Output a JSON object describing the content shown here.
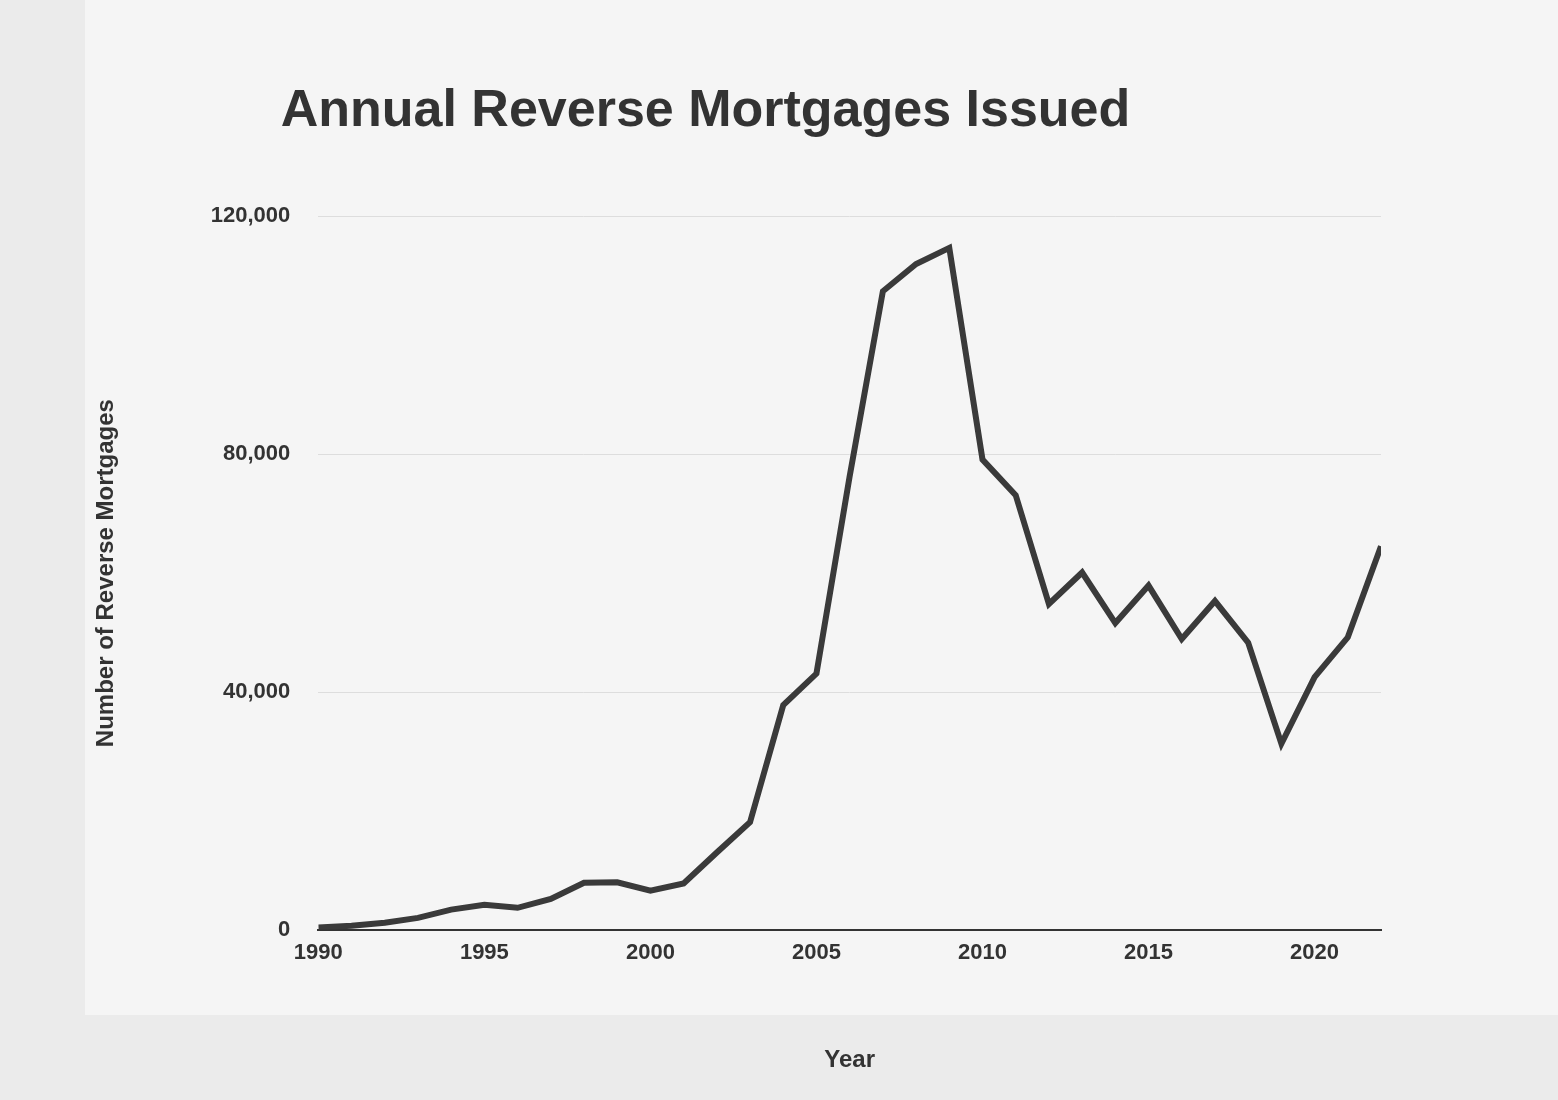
{
  "chart_data": {
    "type": "line",
    "title": "Annual Reverse Mortgages Issued",
    "x_label": "Year",
    "y_label": "Number of Reverse Mortgages",
    "x": [
      1990,
      1991,
      1992,
      1993,
      1994,
      1995,
      1996,
      1997,
      1998,
      1999,
      2000,
      2001,
      2002,
      2003,
      2004,
      2005,
      2006,
      2007,
      2008,
      2009,
      2010,
      2011,
      2012,
      2013,
      2014,
      2015,
      2016,
      2017,
      2018,
      2019,
      2020,
      2021,
      2022
    ],
    "values": [
      400,
      700,
      1200,
      2000,
      3400,
      4200,
      3700,
      5200,
      7900,
      8000,
      6600,
      7800,
      13000,
      18100,
      37800,
      43100,
      76300,
      107400,
      112000,
      114700,
      79100,
      73100,
      54800,
      60100,
      51600,
      57900,
      48900,
      55300,
      48300,
      31300,
      42500,
      49200,
      64500
    ],
    "color": "#3a3a3a",
    "xlim": [
      1990,
      2022
    ],
    "xticks": [
      1990,
      1995,
      2000,
      2005,
      2010,
      2015,
      2020
    ],
    "ylim": [
      0,
      120000
    ],
    "yticks": [
      0,
      {
        "value": 40000,
        "label": "40,000"
      },
      {
        "value": 80000,
        "label": "80,000"
      },
      {
        "value": 120000,
        "label": "120,000"
      }
    ],
    "grid": true
  }
}
